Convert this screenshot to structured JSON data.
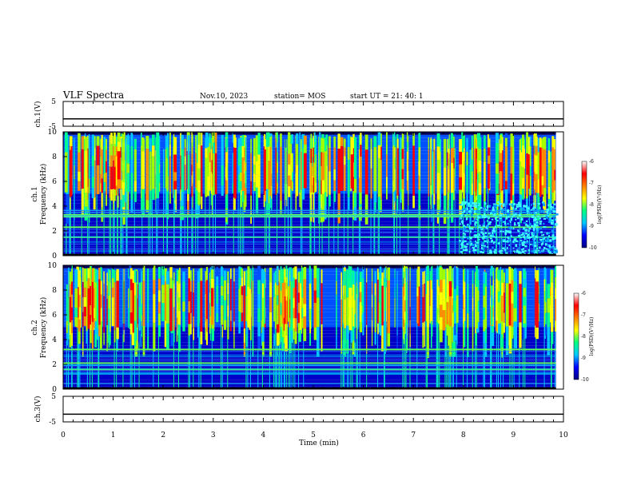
{
  "header": {
    "title": "VLF Spectra",
    "date": "Nov.10, 2023",
    "station": "station= MOS",
    "start": "start  UT =   21: 40: 1"
  },
  "chart_data": [
    {
      "type": "line",
      "name": "ch.1 waveform",
      "ylabel": "ch.1(V)",
      "ylim": [
        -5,
        5
      ],
      "yticks": [
        "5",
        "-5"
      ],
      "x": [
        0,
        10
      ],
      "y": [
        -2,
        -2
      ]
    },
    {
      "type": "heatmap",
      "name": "ch.1 spectrogram",
      "ylabel": "ch.1\nFrequency (kHz)",
      "ylabel_lines": [
        "ch.1",
        "Frequency (kHz)"
      ],
      "ylim": [
        0,
        10
      ],
      "yticks": [
        "0",
        "2",
        "4",
        "6",
        "8",
        "10"
      ],
      "xlim": [
        0,
        10
      ],
      "colorbar": {
        "label": "log(PSD)(V²/Hz)",
        "range": [
          -10,
          -6
        ],
        "ticks": [
          "-6",
          "-7",
          "-8",
          "-9",
          "-10"
        ]
      },
      "bands_khz": [
        3.3,
        3.15,
        2.3,
        1.5
      ],
      "noise_after_min": 7.9
    },
    {
      "type": "heatmap",
      "name": "ch.2 spectrogram",
      "ylabel": "ch.2\nFrequency (kHz)",
      "ylabel_lines": [
        "ch.2",
        "Frequency (kHz)"
      ],
      "ylim": [
        0,
        10
      ],
      "yticks": [
        "0",
        "2",
        "4",
        "6",
        "8",
        "10"
      ],
      "xlim": [
        0,
        10
      ],
      "colorbar": {
        "label": "log(PSD)(V²/Hz)",
        "range": [
          -10,
          -6
        ],
        "ticks": [
          "-6",
          "-7",
          "-8",
          "-9",
          "-10"
        ]
      },
      "bands_khz": [
        3.2,
        2.1,
        1.6
      ]
    },
    {
      "type": "line",
      "name": "ch.3 waveform",
      "ylabel": "ch.3(V)",
      "ylim": [
        -5,
        5
      ],
      "yticks": [
        "5",
        "-5"
      ],
      "x": [
        0,
        10
      ],
      "y": [
        -2,
        -2
      ]
    }
  ],
  "xaxis": {
    "label": "Time  (min)",
    "ticks": [
      "0",
      "1",
      "2",
      "3",
      "4",
      "5",
      "6",
      "7",
      "8",
      "9",
      "10"
    ],
    "data_end": 9.85
  },
  "colors": {
    "colormap": [
      "#000080",
      "#0000ff",
      "#00c8ff",
      "#00ff80",
      "#ffff00",
      "#ff8000",
      "#ff0000",
      "#ffffff"
    ]
  }
}
